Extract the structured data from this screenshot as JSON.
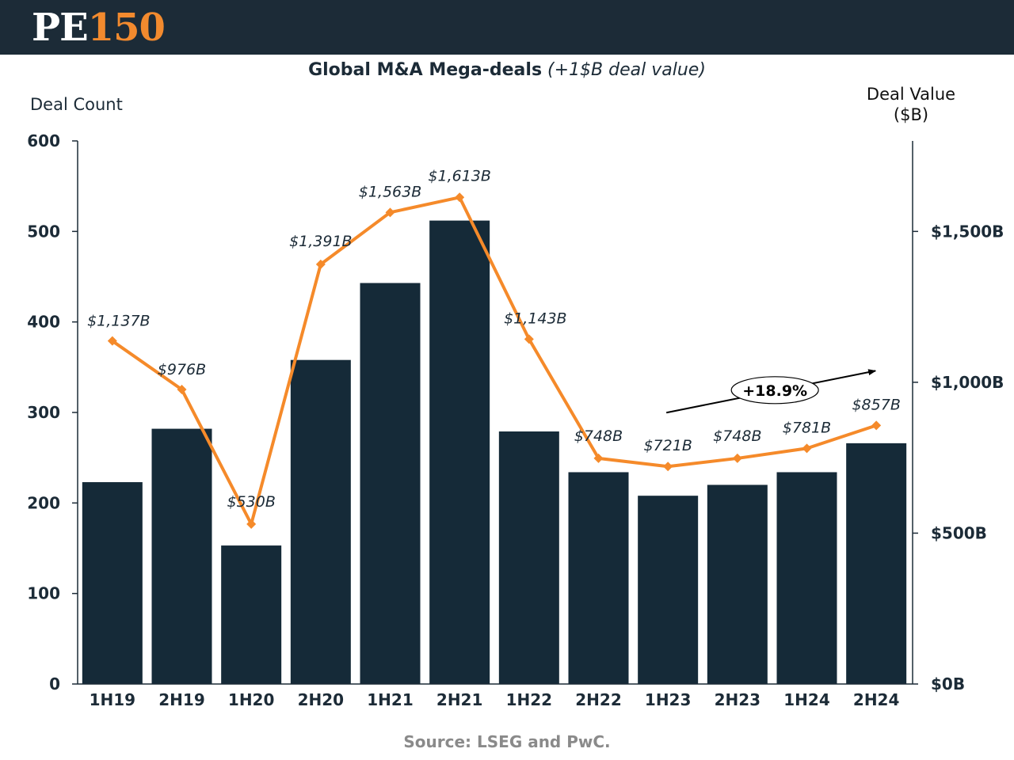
{
  "brand": {
    "logo_left": "PE",
    "logo_right": "150"
  },
  "title": {
    "main": "Global M&A Mega-deals",
    "subtitle": "(+1$B deal value)"
  },
  "axes": {
    "left_label": "Deal Count",
    "right_label_line1": "Deal Value",
    "right_label_line2": "($B)"
  },
  "source": "Source: LSEG and PwC.",
  "colors": {
    "bar": "#152a38",
    "line": "#f58a2a",
    "header": "#1c2b37"
  },
  "chart_data": {
    "type": "bar",
    "title": "Global M&A Mega-deals (+1$B deal value)",
    "categories": [
      "1H19",
      "2H19",
      "1H20",
      "2H20",
      "1H21",
      "2H21",
      "1H22",
      "2H22",
      "1H23",
      "2H23",
      "1H24",
      "2H24"
    ],
    "series": [
      {
        "name": "Deal Count",
        "type": "bar",
        "axis": "left",
        "values": [
          223,
          282,
          153,
          358,
          443,
          512,
          279,
          234,
          208,
          220,
          234,
          266
        ]
      },
      {
        "name": "Deal Value ($B)",
        "type": "line",
        "axis": "right",
        "values": [
          1137,
          976,
          530,
          1391,
          1563,
          1613,
          1143,
          748,
          721,
          748,
          781,
          857
        ],
        "labels": [
          "$1,137B",
          "$976B",
          "$530B",
          "$1,391B",
          "$1,563B",
          "$1,613B",
          "$1,143B",
          "$748B",
          "$721B",
          "$748B",
          "$781B",
          "$857B"
        ]
      }
    ],
    "y_left": {
      "label": "Deal Count",
      "min": 0,
      "max": 600,
      "ticks": [
        0,
        100,
        200,
        300,
        400,
        500,
        600
      ]
    },
    "y_right": {
      "label": "Deal Value ($B)",
      "min": 0,
      "max": 1800,
      "ticks": [
        0,
        500,
        1000,
        1500
      ],
      "tick_labels": [
        "$0B",
        "$500B",
        "$1,000B",
        "$1,500B"
      ]
    },
    "annotation": {
      "text": "+18.9%",
      "from_category": "1H23",
      "to_category": "2H24"
    }
  }
}
